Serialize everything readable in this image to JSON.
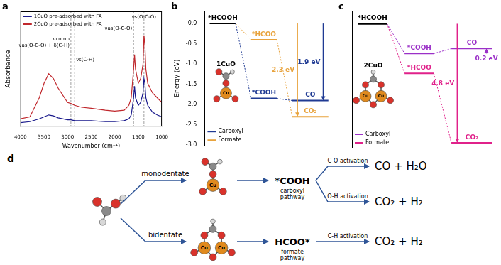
{
  "chart_data": [
    {
      "type": "line",
      "panel": "a",
      "x_label": "Wavenumber (cm⁻¹)",
      "y_label": "Absorbance",
      "x": [
        4000,
        3800,
        3600,
        3500,
        3400,
        3300,
        3200,
        3000,
        2930,
        2850,
        2700,
        2500,
        2200,
        2000,
        1800,
        1700,
        1650,
        1600,
        1580,
        1560,
        1500,
        1450,
        1400,
        1380,
        1360,
        1340,
        1300,
        1200,
        1100,
        1000
      ],
      "xlim": [
        4000,
        1000
      ],
      "xticks": [
        4000,
        3500,
        3000,
        2500,
        2000,
        1500,
        1000
      ],
      "ylim": [
        0,
        1.2
      ],
      "tick_labels": "x",
      "grid": false,
      "legend": "upper left",
      "series": [
        {
          "name": "1CuO pre-adsorbed with FA",
          "color": "#1a1a8c",
          "values": [
            0.04,
            0.05,
            0.08,
            0.1,
            0.12,
            0.11,
            0.09,
            0.07,
            0.07,
            0.06,
            0.06,
            0.06,
            0.05,
            0.05,
            0.06,
            0.08,
            0.12,
            0.3,
            0.42,
            0.3,
            0.22,
            0.25,
            0.35,
            0.5,
            0.45,
            0.3,
            0.22,
            0.15,
            0.12,
            0.1
          ]
        },
        {
          "name": "2CuO pre-adsorbed with FA",
          "color": "#c0282d",
          "values": [
            0.08,
            0.1,
            0.3,
            0.45,
            0.55,
            0.5,
            0.4,
            0.25,
            0.24,
            0.22,
            0.2,
            0.19,
            0.17,
            0.16,
            0.17,
            0.22,
            0.3,
            0.6,
            0.75,
            0.6,
            0.45,
            0.5,
            0.65,
            0.95,
            0.85,
            0.6,
            0.45,
            0.35,
            0.3,
            0.25
          ]
        }
      ],
      "annotations": [
        {
          "x": 2930,
          "text": [
            "νcomb",
            "νas(O-C-O) + δ(C-H)"
          ]
        },
        {
          "x": 2850,
          "text": [
            "νs(C-H)"
          ]
        },
        {
          "x": 1600,
          "text": [
            "νas(O-C-O)"
          ]
        },
        {
          "x": 1380,
          "text": [
            "νs(O-C-O)"
          ]
        }
      ]
    },
    {
      "type": "energy_diagram",
      "panel": "b",
      "y_label": "Energy (eV)",
      "ylim": [
        -3.0,
        0.3
      ],
      "yticks": [
        {
          "value": 0,
          "label": "0.0"
        },
        -0.5,
        {
          "value": -1,
          "label": "-1.0"
        },
        -1.5,
        {
          "value": -2,
          "label": "-2.0"
        },
        -2.5,
        {
          "value": -3,
          "label": "-3.0"
        }
      ],
      "tick_labels": "y",
      "grid": false,
      "legend": "lower left",
      "inset": {
        "label": "1CuO",
        "metal": [
          "Cu"
        ]
      },
      "series": [
        {
          "name": "Carboxyl",
          "color": "#1f3a93",
          "steps": [
            "*HCOOH",
            "*COOH",
            "CO"
          ],
          "values": [
            0,
            -1.85,
            -1.9
          ]
        },
        {
          "name": "Formate",
          "color": "#e8a33d",
          "steps": [
            "*HCOOH",
            "*HCOO",
            "CO₂"
          ],
          "values": [
            0,
            -0.4,
            -2.3
          ]
        }
      ],
      "arrows": [
        {
          "label": "2.3 eV",
          "from": 0,
          "to": -2.3,
          "color": "#e8a33d"
        },
        {
          "label": "1.9 eV",
          "from": 0,
          "to": -1.9,
          "color": "#1f3a93"
        }
      ]
    },
    {
      "type": "energy_diagram",
      "panel": "c",
      "ylim": [
        -5.0,
        0.5
      ],
      "tick_labels": false,
      "grid": false,
      "legend": "lower left",
      "inset": {
        "label": "2CuO",
        "metal": [
          "Cu",
          "Cu"
        ]
      },
      "series": [
        {
          "name": "Carboxyl",
          "color": "#9b30c8",
          "steps": [
            "*HCOOH",
            "*COOH",
            "CO"
          ],
          "values": [
            0,
            -1.2,
            -1.0
          ]
        },
        {
          "name": "Formate",
          "color": "#e0218a",
          "steps": [
            "*HCOOH",
            "*HCOO",
            "CO₂"
          ],
          "values": [
            0,
            -2.0,
            -4.8
          ]
        }
      ],
      "arrows": [
        {
          "label": "4.8 eV",
          "from": 0,
          "to": -4.8,
          "color": "#e0218a"
        },
        {
          "label": "0.2 eV",
          "from": -1.2,
          "to": -1.0,
          "color": "#9b30c8"
        }
      ]
    }
  ],
  "scheme": {
    "panel": "d",
    "branches": [
      {
        "label": "monodentate",
        "metal": [
          "Cu"
        ],
        "intermediate": "*COOH",
        "pathway": "carboxyl pathway",
        "routes": [
          {
            "step": "C-O activation",
            "products": "CO + H₂O"
          },
          {
            "step": "O-H activation",
            "products": "CO₂ + H₂"
          }
        ]
      },
      {
        "label": "bidentate",
        "metal": [
          "Cu",
          "Cu"
        ],
        "intermediate": "HCOO*",
        "pathway": "formate pathway",
        "routes": [
          {
            "step": "C-H activation",
            "products": "CO₂ + H₂"
          }
        ]
      }
    ]
  }
}
